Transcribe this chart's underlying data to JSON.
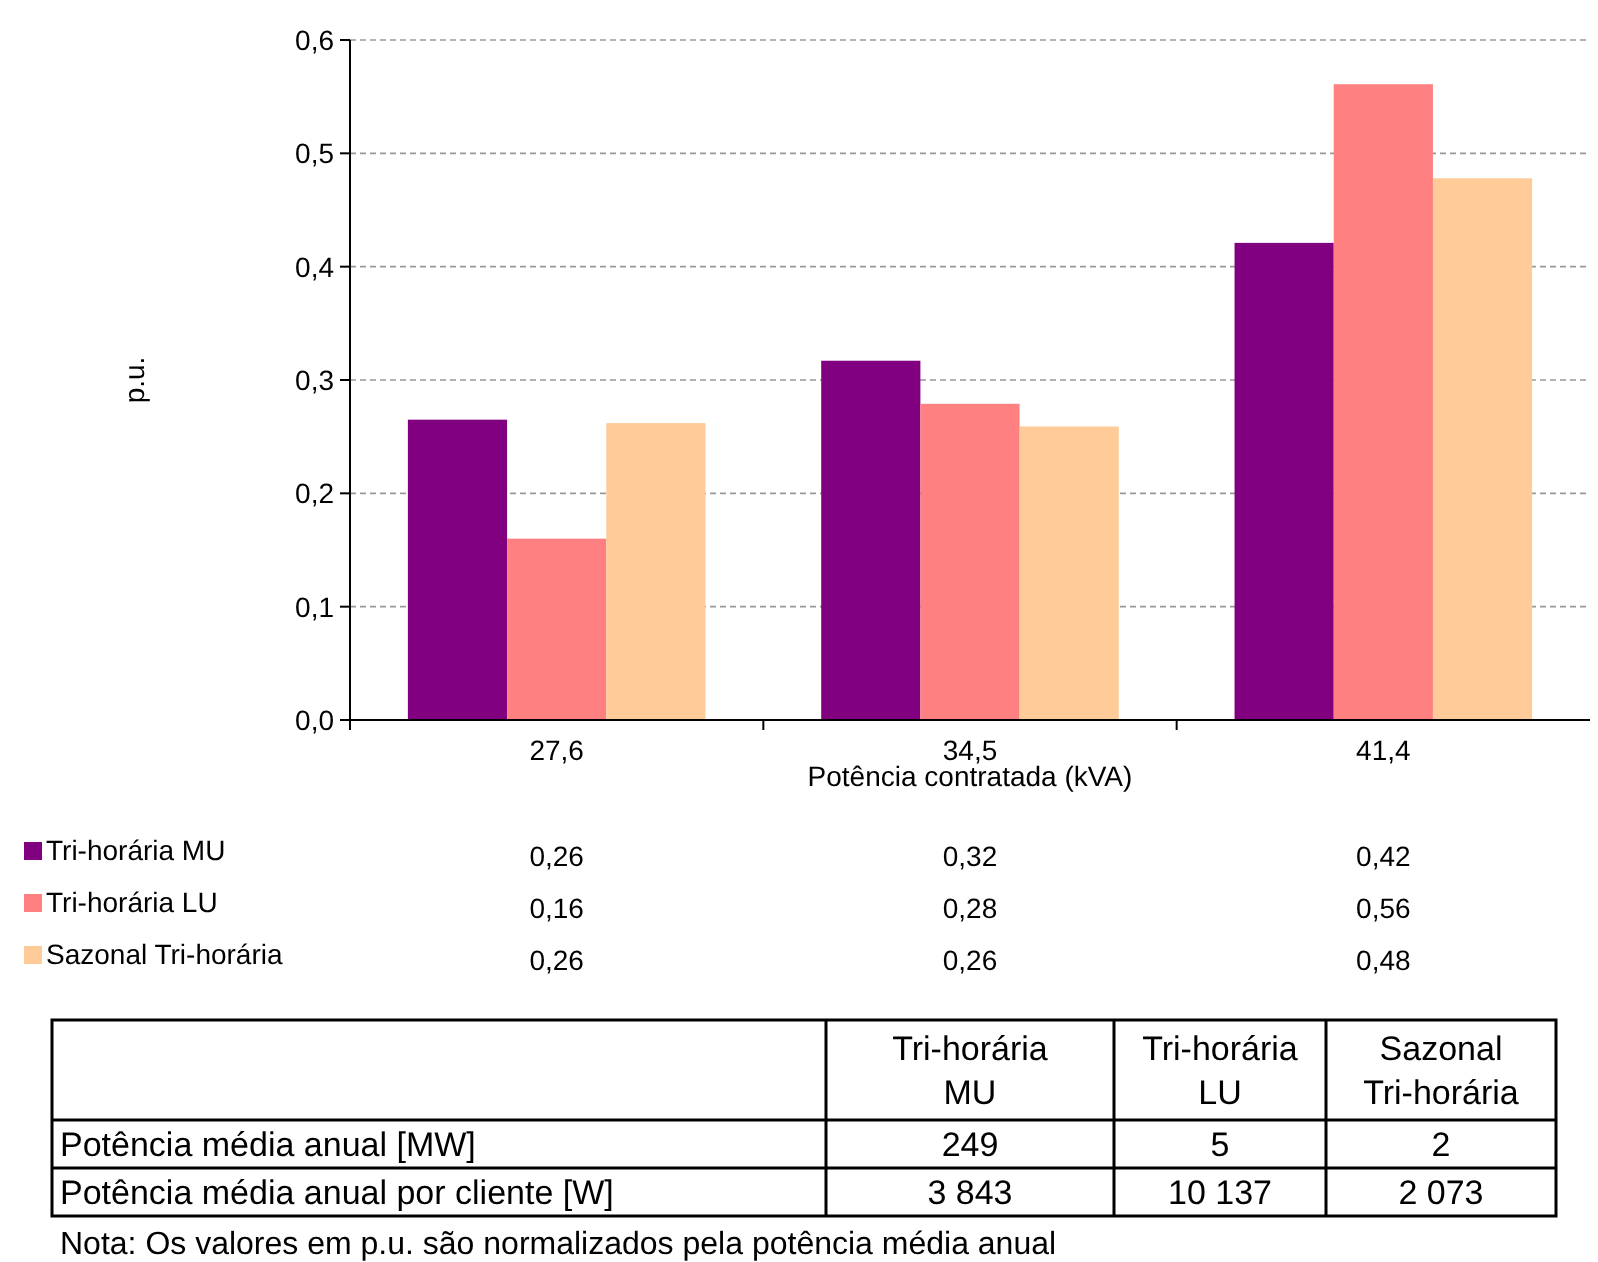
{
  "chart_data": [
    {
      "type": "bar",
      "categories": [
        "27,6",
        "34,5",
        "41,4"
      ],
      "xlabel": "Potência contratada (kVA)",
      "ylabel": "p.u.",
      "ylim": [
        0,
        0.6
      ],
      "yticks": [
        {
          "value": 0,
          "label": "0,0"
        },
        {
          "value": 0.1,
          "label": "0,1"
        },
        {
          "value": 0.2,
          "label": "0,2"
        },
        {
          "value": 0.3,
          "label": "0,3"
        },
        {
          "value": 0.4,
          "label": "0,4"
        },
        {
          "value": 0.5,
          "label": "0,5"
        },
        {
          "value": 0.6,
          "label": "0,6"
        }
      ],
      "grid": "y",
      "legend": "bottom",
      "series": [
        {
          "name": "Tri-horária MU",
          "color": "#800080",
          "values": [
            0.265,
            0.317,
            0.421
          ],
          "value_labels": [
            "0,26",
            "0,32",
            "0,42"
          ]
        },
        {
          "name": "Tri-horária LU",
          "color": "#ff8080",
          "values": [
            0.16,
            0.279,
            0.561
          ],
          "value_labels": [
            "0,16",
            "0,28",
            "0,56"
          ]
        },
        {
          "name": "Sazonal Tri-horária",
          "color": "#ffcc99",
          "values": [
            0.262,
            0.259,
            0.478
          ],
          "value_labels": [
            "0,26",
            "0,26",
            "0,48"
          ]
        }
      ]
    },
    {
      "type": "other",
      "categories": [
        "Tri-horária MU",
        "Tri-horária LU",
        "Sazonal Tri-horária"
      ],
      "y_categories": [
        "Potência média anual [MW]",
        "Potência média anual por cliente [W]"
      ],
      "cell_labels": [
        [
          "249",
          "5",
          "2"
        ],
        [
          "3 843",
          "10 137",
          "2 073"
        ]
      ],
      "annotations": [
        "Nota: Os valores em p.u. são normalizados pela potência média anual"
      ]
    }
  ]
}
